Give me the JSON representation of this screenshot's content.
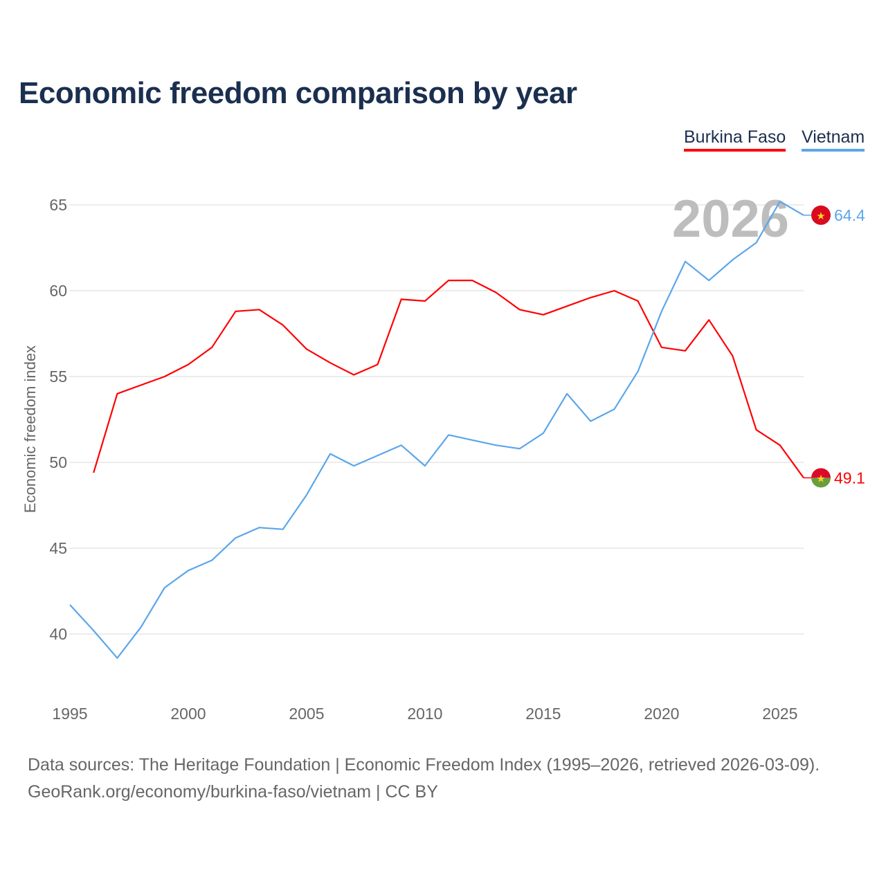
{
  "chart_data": {
    "type": "line",
    "title": "Economic freedom comparison by year",
    "xlabel": "",
    "ylabel": "Economic freedom index",
    "xlim": [
      1995,
      2026
    ],
    "ylim": [
      37,
      67
    ],
    "yticks": [
      40,
      45,
      50,
      55,
      60,
      65
    ],
    "xticks": [
      1995,
      2000,
      2005,
      2010,
      2015,
      2020,
      2025
    ],
    "grid": true,
    "legend_position": "top-right",
    "year_label": "2026",
    "series": [
      {
        "name": "Burkina Faso",
        "color": "#ff0000",
        "end_label": "49.1",
        "flag": "burkina-faso",
        "x": [
          1996,
          1997,
          1998,
          1999,
          2000,
          2001,
          2002,
          2003,
          2004,
          2005,
          2006,
          2007,
          2008,
          2009,
          2010,
          2011,
          2012,
          2013,
          2014,
          2015,
          2016,
          2017,
          2018,
          2019,
          2020,
          2021,
          2022,
          2023,
          2024,
          2025,
          2026
        ],
        "values": [
          49.4,
          54.0,
          54.5,
          55.0,
          55.7,
          56.7,
          58.8,
          58.9,
          58.0,
          56.6,
          55.8,
          55.1,
          55.7,
          59.5,
          59.4,
          60.6,
          60.6,
          59.9,
          58.9,
          58.6,
          59.1,
          59.6,
          60.0,
          59.4,
          56.7,
          56.5,
          58.3,
          56.2,
          51.9,
          51.0,
          49.1
        ]
      },
      {
        "name": "Vietnam",
        "color": "#5ba6ea",
        "end_label": "64.4",
        "flag": "vietnam",
        "x": [
          1995,
          1996,
          1997,
          1998,
          1999,
          2000,
          2001,
          2002,
          2003,
          2004,
          2005,
          2006,
          2007,
          2008,
          2009,
          2010,
          2011,
          2012,
          2013,
          2014,
          2015,
          2016,
          2017,
          2018,
          2019,
          2020,
          2021,
          2022,
          2023,
          2024,
          2025,
          2026
        ],
        "values": [
          41.7,
          40.2,
          38.6,
          40.4,
          42.7,
          43.7,
          44.3,
          45.6,
          46.2,
          46.1,
          48.1,
          50.5,
          49.8,
          50.4,
          51.0,
          49.8,
          51.6,
          51.3,
          51.0,
          50.8,
          51.7,
          54.0,
          52.4,
          53.1,
          55.3,
          58.8,
          61.7,
          60.6,
          61.8,
          62.8,
          65.2,
          64.4
        ]
      }
    ]
  },
  "footer": {
    "line1": "Data sources: The Heritage Foundation | Economic Freedom Index (1995–2026, retrieved 2026-03-09).",
    "line2": "GeoRank.org/economy/burkina-faso/vietnam | CC BY"
  }
}
